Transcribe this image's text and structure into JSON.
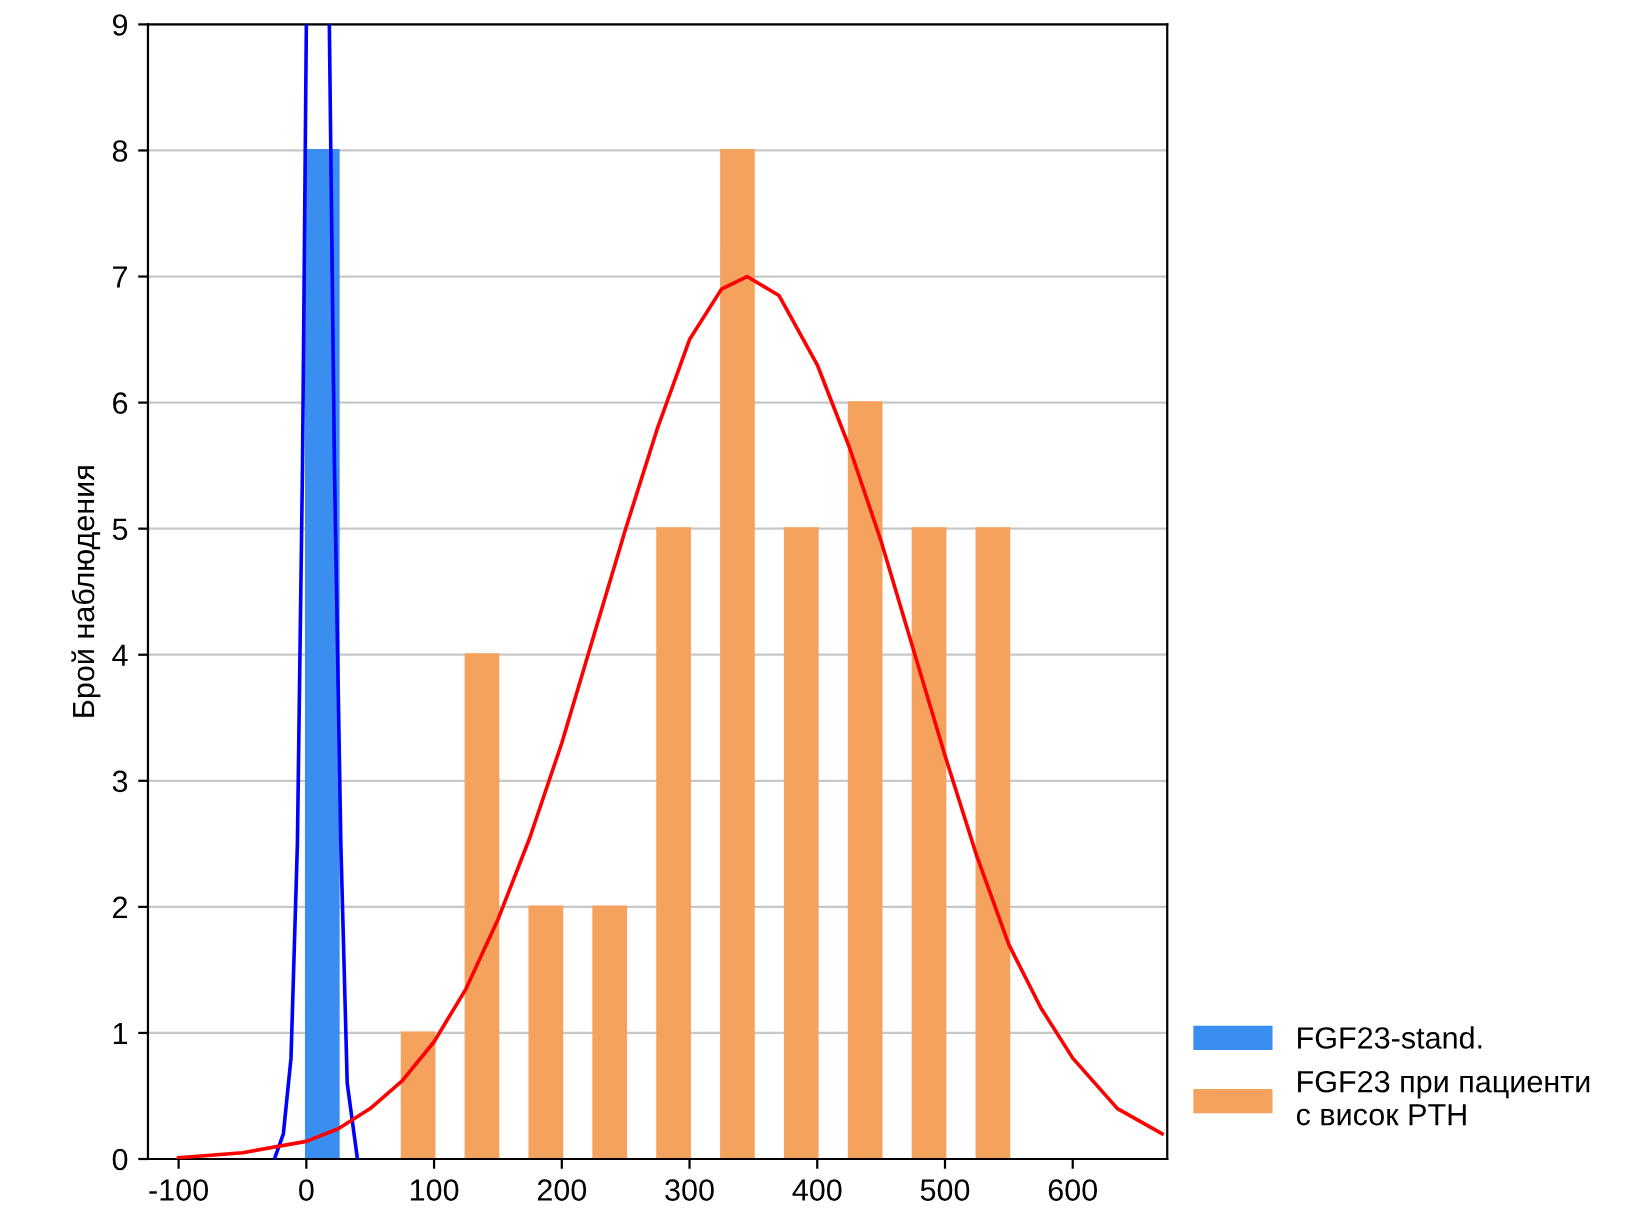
{
  "chart_data": {
    "type": "histogram",
    "ylabel": "Брой наблюдения",
    "bins": [
      0,
      50,
      100,
      150,
      200,
      250,
      300,
      350,
      400,
      450,
      500,
      550
    ],
    "series": [
      {
        "name": "FGF23-stand.",
        "color": "#3a8ef0",
        "values": [
          8,
          0,
          0,
          0,
          0,
          0,
          0,
          0,
          0,
          0,
          0
        ]
      },
      {
        "name": "FGF23 при пациенти\nс висок PTH",
        "color": "#f5a25e",
        "values": [
          0,
          1,
          4,
          2,
          2,
          5,
          8,
          5,
          6,
          5,
          5
        ]
      },
      {
        "type": "line",
        "color": "#0000ff",
        "x": [
          -25,
          -18,
          -12,
          -7,
          -3,
          0,
          9,
          18,
          22,
          27,
          32,
          40
        ],
        "values": [
          0,
          0.2,
          0.8,
          2.5,
          5.5,
          9,
          null,
          9,
          5.5,
          2.5,
          0.6,
          0
        ]
      },
      {
        "type": "line",
        "color": "#ff0000",
        "x": [
          -100,
          -50,
          0,
          25,
          50,
          75,
          100,
          125,
          150,
          175,
          200,
          225,
          250,
          275,
          300,
          325,
          345,
          370,
          400,
          425,
          450,
          475,
          500,
          525,
          550,
          575,
          600,
          635,
          670
        ],
        "values": [
          0.01,
          0.05,
          0.14,
          0.24,
          0.4,
          0.62,
          0.93,
          1.35,
          1.9,
          2.55,
          3.3,
          4.15,
          5.0,
          5.8,
          6.5,
          6.9,
          7.0,
          6.85,
          6.3,
          5.65,
          4.9,
          4.05,
          3.2,
          2.4,
          1.7,
          1.2,
          0.8,
          0.4,
          0.2
        ]
      }
    ],
    "xlim": [
      -124,
      674
    ],
    "ylim": [
      0,
      9
    ],
    "xticks": [
      -100,
      0,
      100,
      200,
      300,
      400,
      500,
      600
    ],
    "yticks": [
      0,
      1,
      2,
      3,
      4,
      5,
      6,
      7,
      8,
      9
    ],
    "grid": "y",
    "legend": "bottom right"
  }
}
